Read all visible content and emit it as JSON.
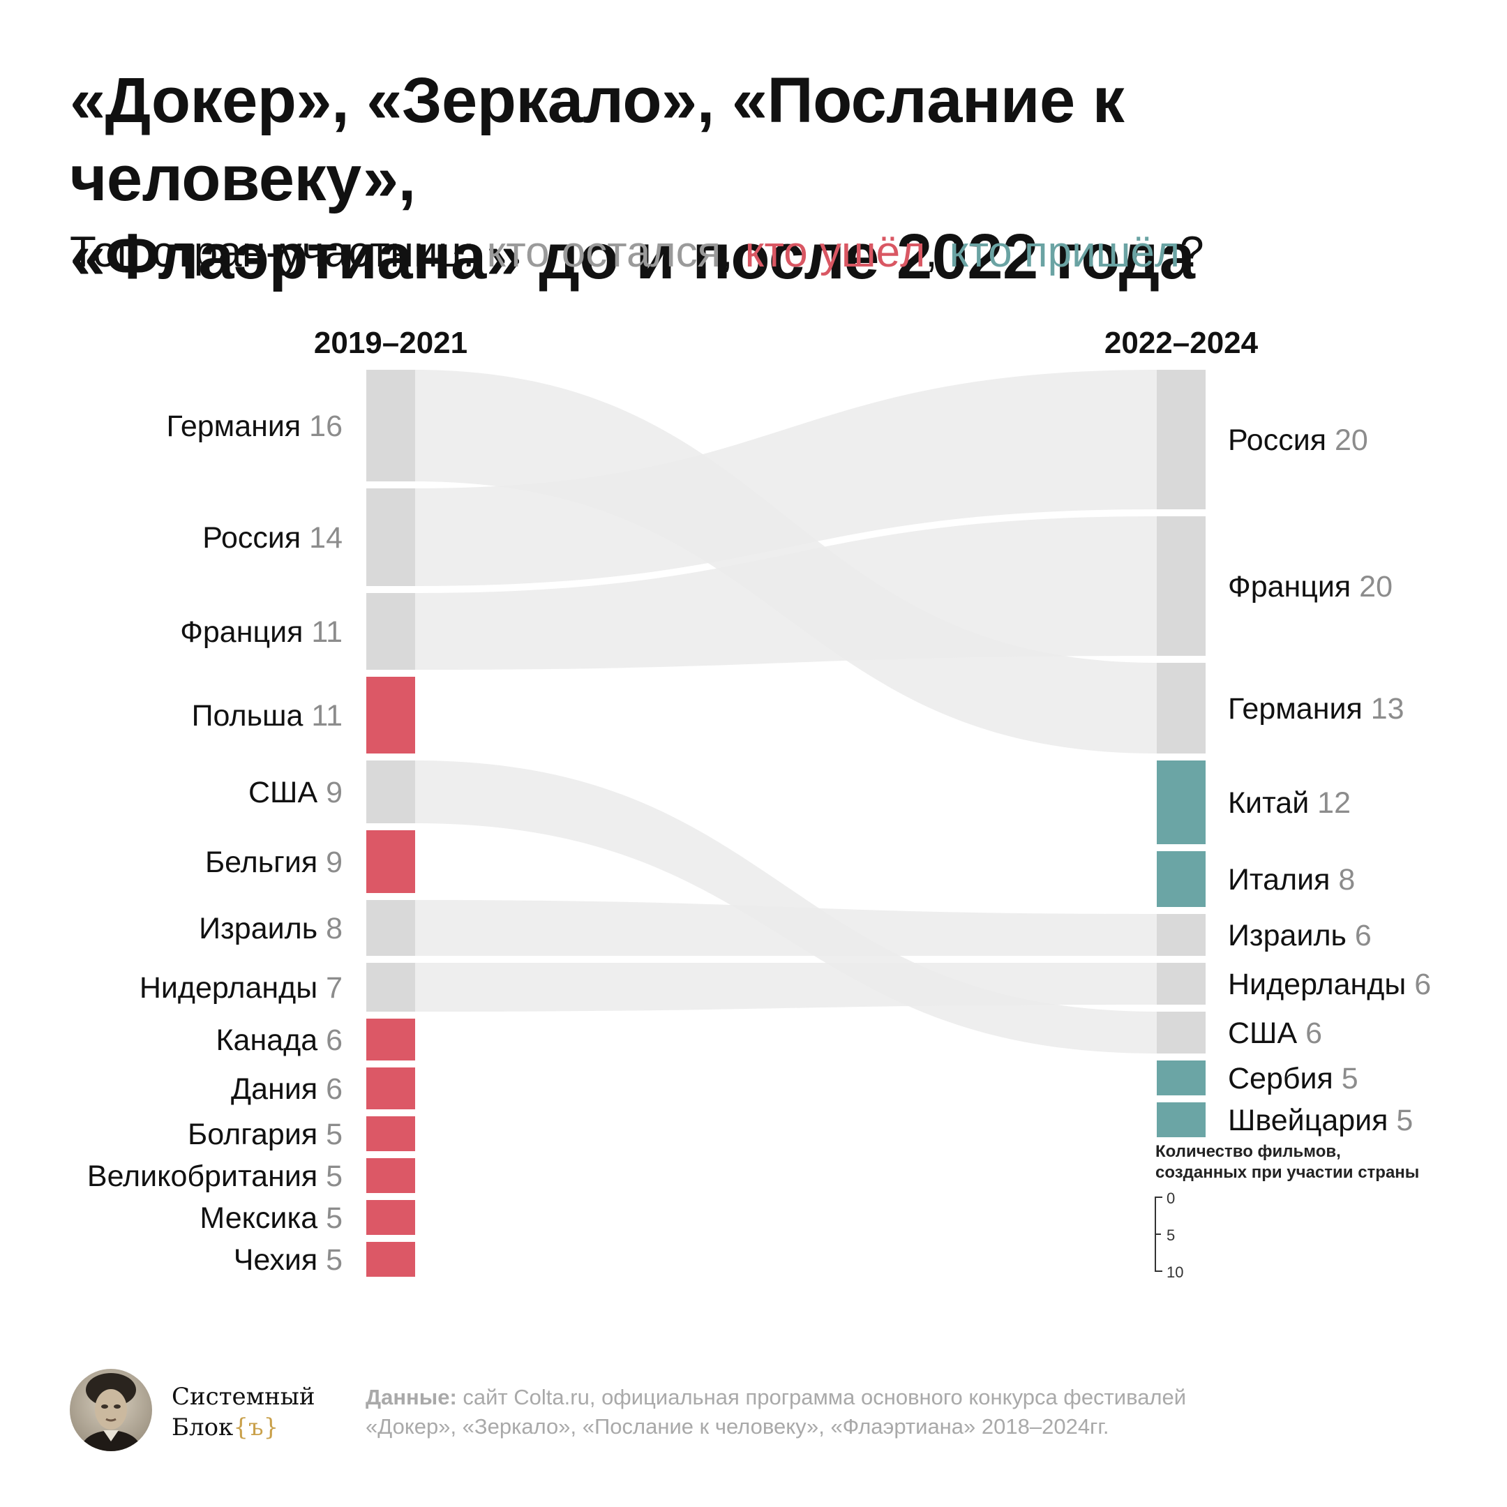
{
  "title_line1": "«Докер», «Зеркало», «Послание к человеку»,",
  "title_line2": "«Флаэртиана» до и после 2022 года",
  "subtitle": {
    "prefix": "Топ стран-участниц: ",
    "stayed": "кто остался",
    "sep1": ", ",
    "left": "кто ушёл",
    "sep2": ", ",
    "came": "кто пришёл",
    "suffix": "?"
  },
  "colors": {
    "stayed": "#d9d9d9",
    "left": "#dc5866",
    "came": "#6ba5a5",
    "flow": "#ebebeb",
    "value_text": "#8c8c8c"
  },
  "chart_data": {
    "type": "sankey",
    "left_period": "2019–2021",
    "right_period": "2022–2024",
    "left": [
      {
        "country": "Германия",
        "value": 16,
        "status": "stayed"
      },
      {
        "country": "Россия",
        "value": 14,
        "status": "stayed"
      },
      {
        "country": "Франция",
        "value": 11,
        "status": "stayed"
      },
      {
        "country": "Польша",
        "value": 11,
        "status": "left"
      },
      {
        "country": "США",
        "value": 9,
        "status": "stayed"
      },
      {
        "country": "Бельгия",
        "value": 9,
        "status": "left"
      },
      {
        "country": "Израиль",
        "value": 8,
        "status": "stayed"
      },
      {
        "country": "Нидерланды",
        "value": 7,
        "status": "stayed"
      },
      {
        "country": "Канада",
        "value": 6,
        "status": "left"
      },
      {
        "country": "Дания",
        "value": 6,
        "status": "left"
      },
      {
        "country": "Болгария",
        "value": 5,
        "status": "left"
      },
      {
        "country": "Великобритания",
        "value": 5,
        "status": "left"
      },
      {
        "country": "Мексика",
        "value": 5,
        "status": "left"
      },
      {
        "country": "Чехия",
        "value": 5,
        "status": "left"
      }
    ],
    "right": [
      {
        "country": "Россия",
        "value": 20,
        "status": "stayed"
      },
      {
        "country": "Франция",
        "value": 20,
        "status": "stayed"
      },
      {
        "country": "Германия",
        "value": 13,
        "status": "stayed"
      },
      {
        "country": "Китай",
        "value": 12,
        "status": "came"
      },
      {
        "country": "Италия",
        "value": 8,
        "status": "came"
      },
      {
        "country": "Израиль",
        "value": 6,
        "status": "stayed"
      },
      {
        "country": "Нидерланды",
        "value": 6,
        "status": "stayed"
      },
      {
        "country": "США",
        "value": 6,
        "status": "stayed"
      },
      {
        "country": "Сербия",
        "value": 5,
        "status": "came"
      },
      {
        "country": "Швейцария",
        "value": 5,
        "status": "came"
      }
    ],
    "legend": {
      "title_line1": "Количество фильмов,",
      "title_line2": "созданных при участии страны",
      "ticks": [
        "0",
        "5",
        "10"
      ]
    }
  },
  "logo": {
    "brand_line1": "Системный",
    "brand_line2_text": "Блок",
    "brand_line2_brace": "{ъ}"
  },
  "source": {
    "label": "Данные:",
    "text_line1": " сайт Colta.ru, официальная программа основного конкурса фестивалей",
    "text_line2": "«Докер», «Зеркало», «Послание к человеку», «Флаэртиана» 2018–2024гг."
  }
}
